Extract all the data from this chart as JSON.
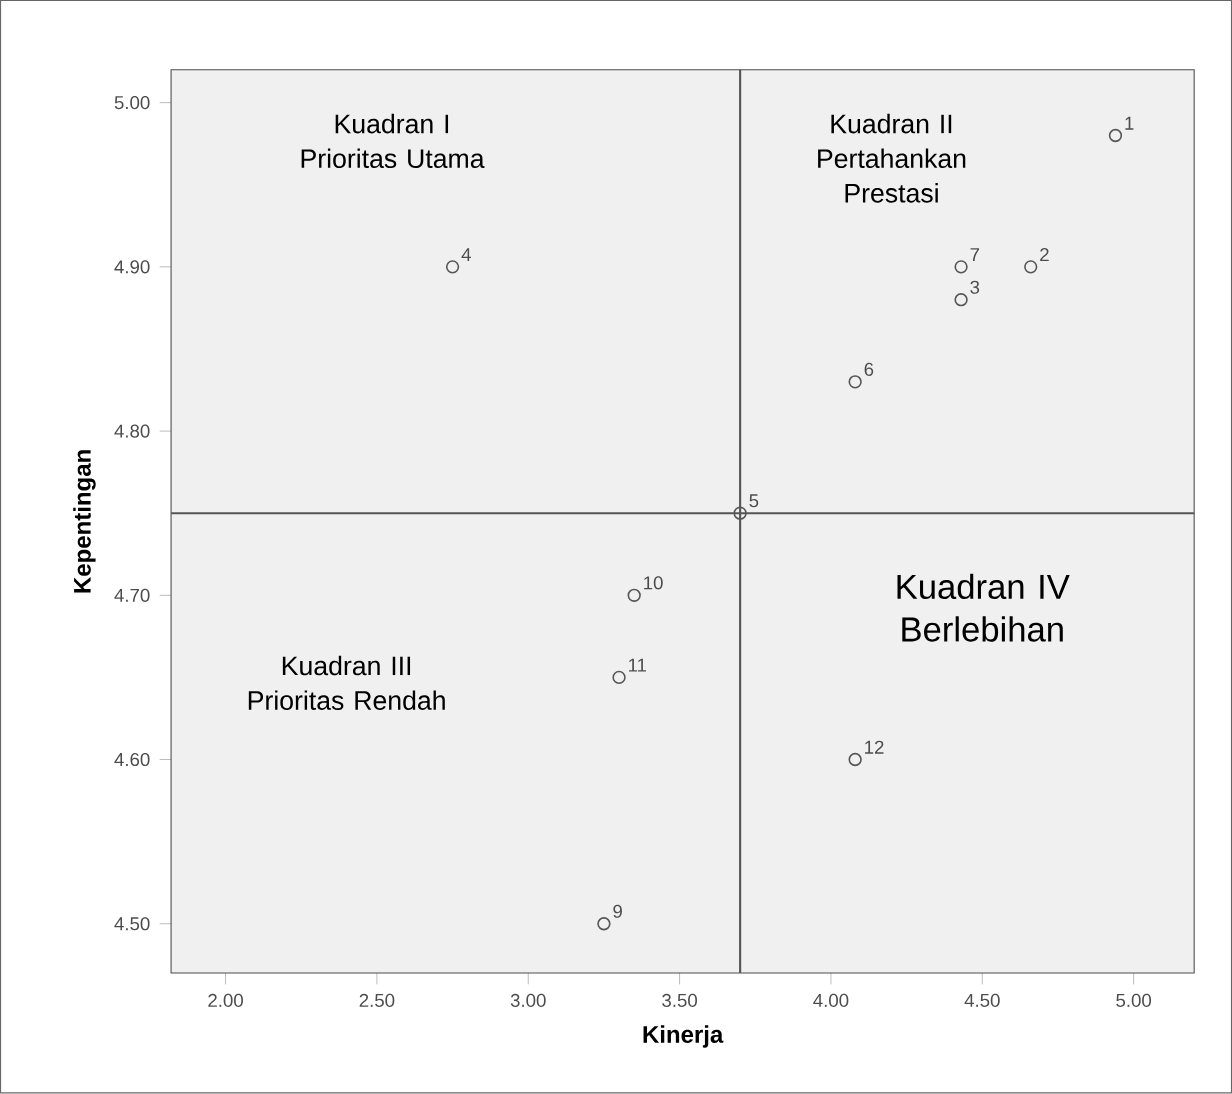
{
  "chart_data": {
    "type": "scatter",
    "xlabel": "Kinerja",
    "ylabel": "Kepentingan",
    "x": [
      4.94,
      4.66,
      4.43,
      2.75,
      3.7,
      4.08,
      4.43,
      3.25,
      3.35,
      3.3,
      4.08
    ],
    "values": [
      4.98,
      4.9,
      4.88,
      4.9,
      4.75,
      4.83,
      4.9,
      4.5,
      4.7,
      4.65,
      4.6
    ],
    "color": "#555555",
    "marker": "circle",
    "xlim": [
      1.82,
      5.2
    ],
    "ylim": [
      4.47,
      5.02
    ],
    "xticks": [
      {
        "value": 2,
        "label": "2.00"
      },
      {
        "value": 2.5,
        "label": "2.50"
      },
      {
        "value": 3,
        "label": "3.00"
      },
      {
        "value": 3.5,
        "label": "3.50"
      },
      {
        "value": 4,
        "label": "4.00"
      },
      {
        "value": 4.5,
        "label": "4.50"
      },
      {
        "value": 5,
        "label": "5.00"
      }
    ],
    "yticks": [
      {
        "value": 4.5,
        "label": "4.50"
      },
      {
        "value": 4.6,
        "label": "4.60"
      },
      {
        "value": 4.7,
        "label": "4.70"
      },
      {
        "value": 4.8,
        "label": "4.80"
      },
      {
        "value": 4.9,
        "label": "4.90"
      },
      {
        "value": 5,
        "label": "5.00"
      }
    ],
    "ref_lines": [
      {
        "axis": "x",
        "value": 3.7,
        "color": "#555555"
      },
      {
        "axis": "y",
        "value": 4.75,
        "color": "#555555"
      }
    ],
    "annotations": [
      {
        "text": "1",
        "x": 4.94,
        "y": 4.98
      },
      {
        "text": "2",
        "x": 4.66,
        "y": 4.9
      },
      {
        "text": "3",
        "x": 4.43,
        "y": 4.88
      },
      {
        "text": "4",
        "x": 2.75,
        "y": 4.9
      },
      {
        "text": "5",
        "x": 3.7,
        "y": 4.75
      },
      {
        "text": "6",
        "x": 4.08,
        "y": 4.83
      },
      {
        "text": "7",
        "x": 4.43,
        "y": 4.9
      },
      {
        "text": "9",
        "x": 3.25,
        "y": 4.5
      },
      {
        "text": "10",
        "x": 3.35,
        "y": 4.7
      },
      {
        "text": "11",
        "x": 3.3,
        "y": 4.65
      },
      {
        "text": "12",
        "x": 4.08,
        "y": 4.6
      },
      "Kuadran I Prioritas Utama",
      "Kuadran II Pertahankan Prestasi",
      "Kuadran III Prioritas Rendah",
      "Kuadran IV Berlebihan"
    ]
  }
}
